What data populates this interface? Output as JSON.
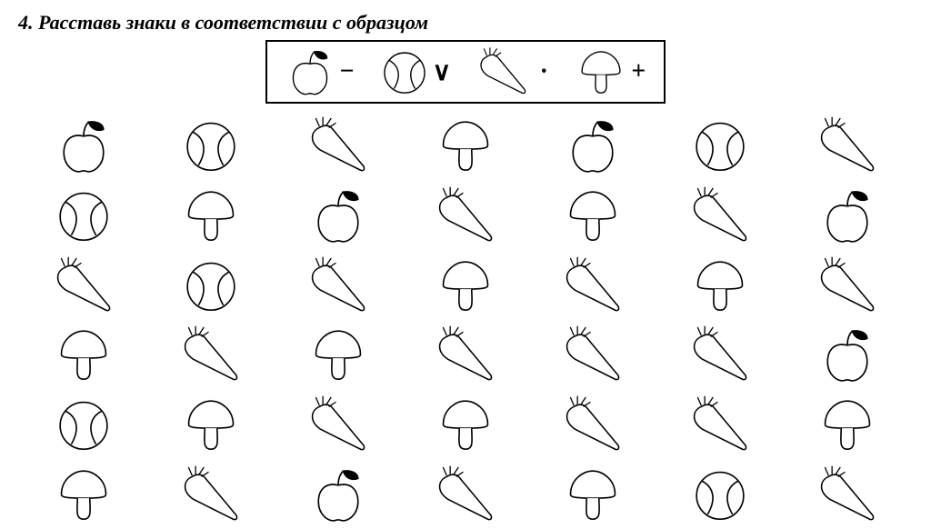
{
  "title": "4. Расставь знаки в соответствии с образцом",
  "stroke_color": "#000000",
  "fill_color": "#ffffff",
  "legend": [
    {
      "shape": "apple",
      "sign": "−"
    },
    {
      "shape": "ball",
      "sign": "∨"
    },
    {
      "shape": "carrot",
      "sign": "·"
    },
    {
      "shape": "mushroom",
      "sign": "+"
    }
  ],
  "legend_icon_size": 58,
  "grid_icon_size": 68,
  "grid": [
    [
      "apple",
      "ball",
      "carrot",
      "mushroom",
      "apple",
      "ball",
      "carrot"
    ],
    [
      "ball",
      "mushroom",
      "apple",
      "carrot",
      "mushroom",
      "carrot",
      "apple"
    ],
    [
      "carrot",
      "ball",
      "carrot",
      "mushroom",
      "carrot",
      "mushroom",
      "carrot"
    ],
    [
      "mushroom",
      "carrot",
      "mushroom",
      "carrot",
      "carrot",
      "carrot",
      "apple"
    ],
    [
      "ball",
      "mushroom",
      "carrot",
      "mushroom",
      "carrot",
      "carrot",
      "mushroom"
    ],
    [
      "mushroom",
      "carrot",
      "apple",
      "carrot",
      "mushroom",
      "ball",
      "carrot"
    ]
  ]
}
